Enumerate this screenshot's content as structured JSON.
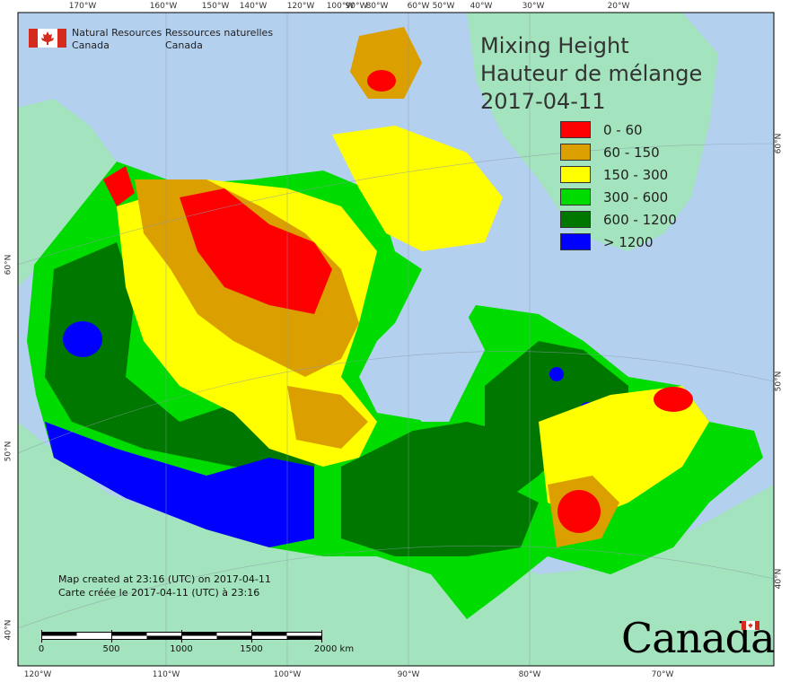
{
  "title": {
    "line1": "Mixing Height",
    "line2": "Hauteur de mélange",
    "date": "2017-04-11"
  },
  "legend": [
    {
      "label": "0 - 60",
      "color": "#ff0000"
    },
    {
      "label": "60 - 150",
      "color": "#dc9f00"
    },
    {
      "label": "150 - 300",
      "color": "#ffff00"
    },
    {
      "label": "300 - 600",
      "color": "#00dc00"
    },
    {
      "label": "600 - 1200",
      "color": "#007800"
    },
    {
      "label": "> 1200",
      "color": "#0000ff"
    }
  ],
  "agency": {
    "english_line1": "Natural Resources",
    "english_line2": "Canada",
    "french_line1": "Ressources naturelles",
    "french_line2": "Canada"
  },
  "credits": {
    "line1": "Map created at 23:16 (UTC) on 2017-04-11",
    "line2": "Carte créée le 2017-04-11 (UTC) à 23:16"
  },
  "scalebar": {
    "labels": [
      "0",
      "500",
      "1000",
      "1500",
      "2000 km"
    ]
  },
  "wordmark": "Canada",
  "graticule": {
    "top_ticks": [
      "170°W",
      "160°W",
      "150°W",
      "140°W",
      "120°W",
      "100°W",
      "90°W",
      "80°W",
      "60°W",
      "50°W",
      "40°W",
      "30°W",
      "20°W"
    ],
    "bottom_ticks": [
      "120°W",
      "110°W",
      "100°W",
      "90°W",
      "80°W",
      "70°W"
    ],
    "left_ticks": [
      "60°N",
      "50°N",
      "40°N"
    ],
    "right_ticks": [
      "60°N",
      "50°N",
      "40°N"
    ]
  },
  "colors": {
    "water": "#b4d0ef",
    "foreign_land": "#a3e3bd",
    "frame": "#000000"
  }
}
